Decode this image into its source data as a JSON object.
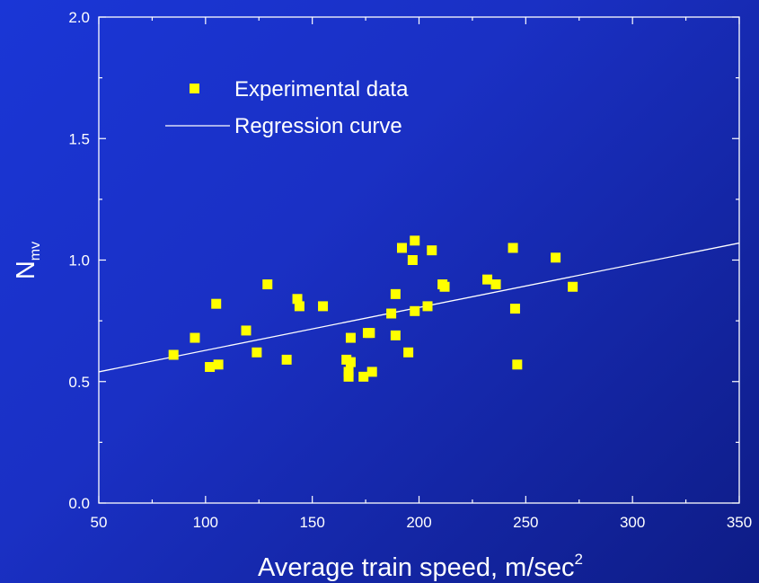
{
  "chart_data": {
    "type": "scatter",
    "xlabel": "Average train speed, m/sec",
    "xlabel_superscript": "2",
    "ylabel_main": "N",
    "ylabel_subscript": "mv",
    "xlim": [
      50,
      350
    ],
    "ylim": [
      0.0,
      2.0
    ],
    "x_ticks": [
      "50",
      "100",
      "150",
      "200",
      "250",
      "300",
      "350"
    ],
    "y_ticks": [
      "0.0",
      "0.5",
      "1.0",
      "1.5",
      "2.0"
    ],
    "legend_position": "top-left",
    "grid": false,
    "series": [
      {
        "name": "Experimental data",
        "kind": "points",
        "color": "#ffff00",
        "marker": "square",
        "points": [
          [
            85,
            0.61
          ],
          [
            95,
            0.68
          ],
          [
            102,
            0.56
          ],
          [
            105,
            0.82
          ],
          [
            106,
            0.57
          ],
          [
            119,
            0.71
          ],
          [
            124,
            0.62
          ],
          [
            129,
            0.9
          ],
          [
            138,
            0.59
          ],
          [
            143,
            0.84
          ],
          [
            144,
            0.81
          ],
          [
            155,
            0.81
          ],
          [
            166,
            0.59
          ],
          [
            167,
            0.54
          ],
          [
            167,
            0.52
          ],
          [
            168,
            0.58
          ],
          [
            168,
            0.68
          ],
          [
            174,
            0.52
          ],
          [
            176,
            0.7
          ],
          [
            177,
            0.7
          ],
          [
            178,
            0.54
          ],
          [
            187,
            0.78
          ],
          [
            189,
            0.86
          ],
          [
            189,
            0.69
          ],
          [
            192,
            1.05
          ],
          [
            195,
            0.62
          ],
          [
            197,
            1.0
          ],
          [
            198,
            1.08
          ],
          [
            198,
            0.79
          ],
          [
            204,
            0.81
          ],
          [
            206,
            1.04
          ],
          [
            211,
            0.9
          ],
          [
            212,
            0.89
          ],
          [
            232,
            0.92
          ],
          [
            236,
            0.9
          ],
          [
            244,
            1.05
          ],
          [
            245,
            0.8
          ],
          [
            246,
            0.57
          ],
          [
            264,
            1.01
          ],
          [
            272,
            0.89
          ]
        ]
      },
      {
        "name": "Regression curve",
        "kind": "line",
        "color": "#ffffff",
        "x": [
          50,
          350
        ],
        "y": [
          0.54,
          1.07
        ]
      }
    ]
  }
}
